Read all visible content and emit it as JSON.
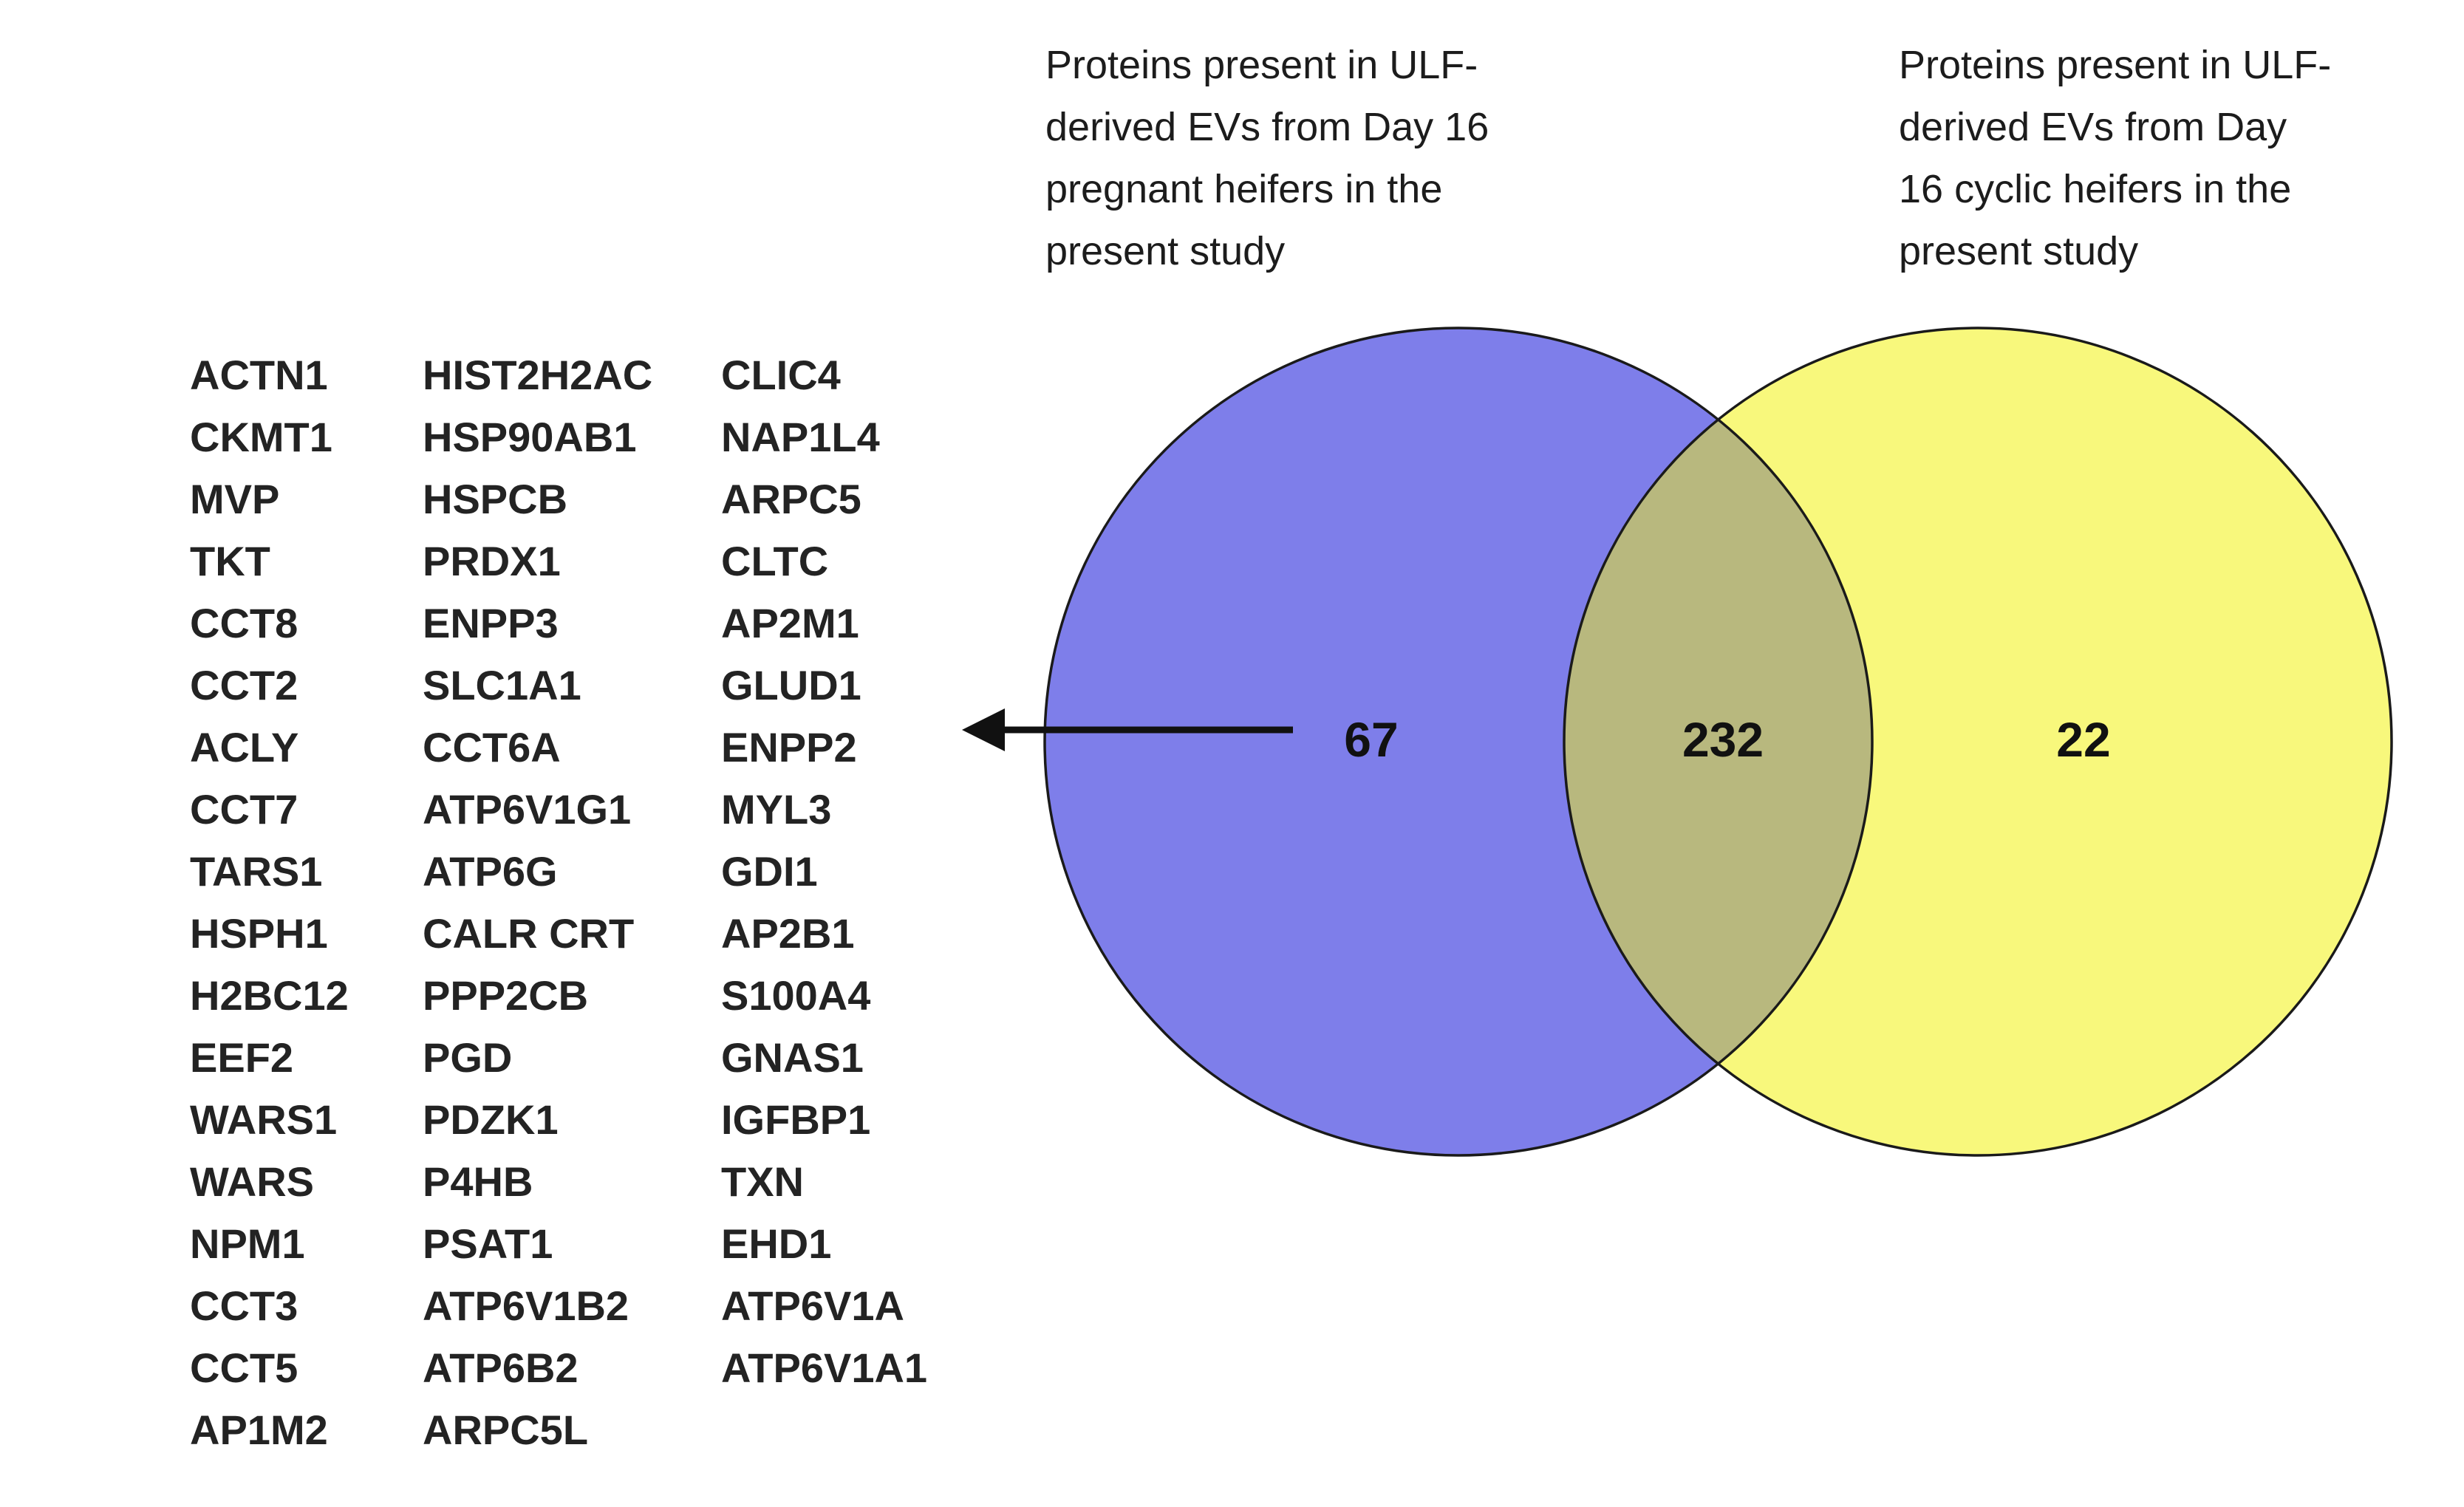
{
  "figure_type": "venn-diagram",
  "labels": {
    "left_set": {
      "full": "Proteins present in ULF-derived EVs from Day 16 pregnant heifers in the present study",
      "lines": [
        "Proteins present in ULF-",
        "derived EVs from Day 16",
        "pregnant heifers in the",
        "present study"
      ]
    },
    "right_set": {
      "full": "Proteins present in ULF-derived EVs from Day 16 cyclic heifers in the present study",
      "lines": [
        "Proteins present in ULF-",
        "derived EVs from Day",
        "16 cyclic heifers in the",
        "present study"
      ]
    }
  },
  "venn": {
    "left_only_count": "67",
    "intersection_count": "232",
    "right_only_count": "22",
    "left_fill": "#7e7eea",
    "right_fill": "#f8f87c",
    "overlap_fill": "#b8b87e",
    "outline_color": "#1a1a1a",
    "arrow": "points from left-only region (67) to the protein list"
  },
  "protein_list": {
    "columns": [
      [
        "ACTN1",
        "CKMT1",
        "MVP",
        "TKT",
        "CCT8",
        "CCT2",
        "ACLY",
        "CCT7",
        "TARS1",
        "HSPH1",
        "H2BC12",
        "EEF2",
        "WARS1",
        "WARS",
        "NPM1",
        "CCT3",
        "CCT5",
        "AP1M2"
      ],
      [
        "HIST2H2AC",
        "HSP90AB1",
        "HSPCB",
        "PRDX1",
        "ENPP3",
        "SLC1A1",
        "CCT6A",
        "ATP6V1G1",
        "ATP6G",
        "CALR CRT",
        "PPP2CB",
        "PGD",
        "PDZK1",
        "P4HB",
        "PSAT1",
        "ATP6V1B2",
        "ATP6B2",
        "ARPC5L"
      ],
      [
        "CLIC4",
        "NAP1L4",
        "ARPC5",
        "CLTC",
        "AP2M1",
        "GLUD1",
        "ENPP2",
        "MYL3",
        "GDI1",
        "AP2B1",
        "S100A4",
        "GNAS1",
        "IGFBP1",
        "TXN",
        "EHD1",
        "ATP6V1A",
        "ATP6V1A1"
      ]
    ]
  }
}
